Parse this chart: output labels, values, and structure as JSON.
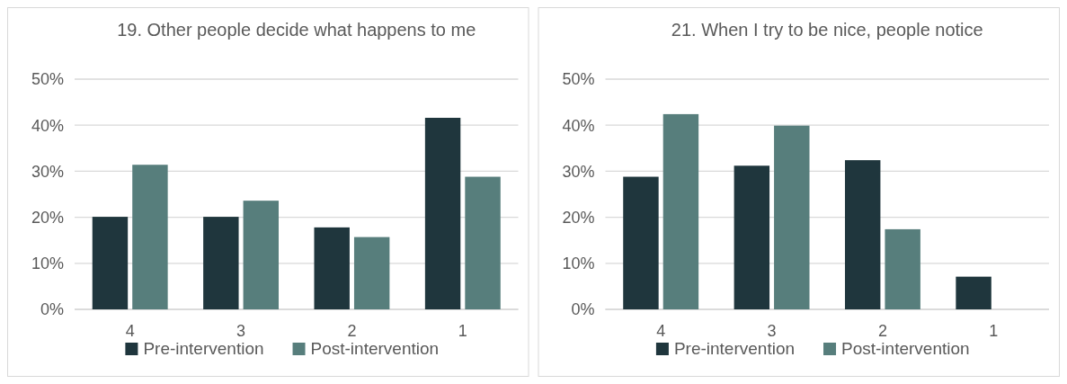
{
  "chart_data": [
    {
      "type": "bar",
      "title": "19. Other people decide what happens to me",
      "categories": [
        "4",
        "3",
        "2",
        "1"
      ],
      "series": [
        {
          "name": "Pre-intervention",
          "color": "#1f363d",
          "values": [
            20.1,
            20.1,
            17.8,
            41.6
          ]
        },
        {
          "name": "Post-intervention",
          "color": "#577e7c",
          "values": [
            31.4,
            23.6,
            15.7,
            28.8
          ]
        }
      ],
      "ylim": [
        0,
        50
      ],
      "yticks": [
        {
          "value": 0,
          "label": "0%"
        },
        {
          "value": 10,
          "label": "10%"
        },
        {
          "value": 20,
          "label": "20%"
        },
        {
          "value": 30,
          "label": "30%"
        },
        {
          "value": 40,
          "label": "40%"
        },
        {
          "value": 50,
          "label": "50%"
        }
      ],
      "grid": "y",
      "legend": "bottom"
    },
    {
      "type": "bar",
      "title": "21. When I try to be nice, people notice",
      "categories": [
        "4",
        "3",
        "2",
        "1"
      ],
      "series": [
        {
          "name": "Pre-intervention",
          "color": "#1f363d",
          "values": [
            28.8,
            31.2,
            32.4,
            7.1
          ]
        },
        {
          "name": "Post-intervention",
          "color": "#577e7c",
          "values": [
            42.4,
            39.9,
            17.4,
            0
          ]
        }
      ],
      "ylim": [
        0,
        50
      ],
      "yticks": [
        {
          "value": 0,
          "label": "0%"
        },
        {
          "value": 10,
          "label": "10%"
        },
        {
          "value": 20,
          "label": "20%"
        },
        {
          "value": 30,
          "label": "30%"
        },
        {
          "value": 40,
          "label": "40%"
        },
        {
          "value": 50,
          "label": "50%"
        }
      ],
      "grid": "y",
      "legend": "bottom"
    }
  ]
}
